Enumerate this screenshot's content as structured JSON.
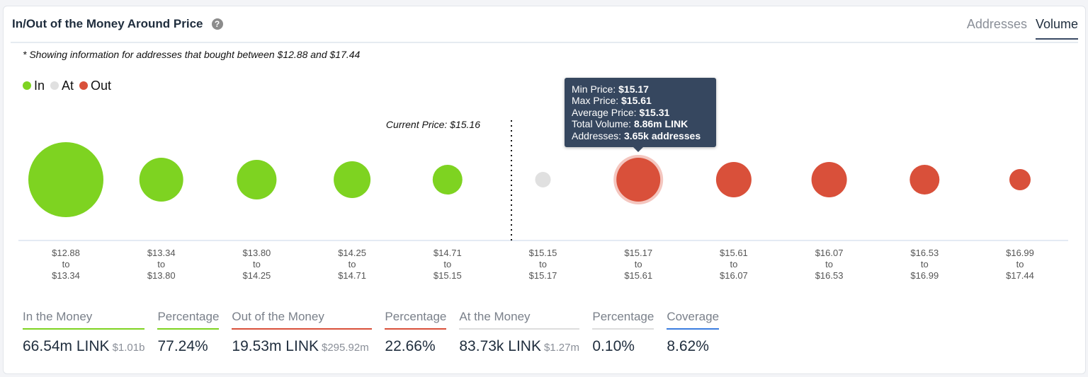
{
  "header": {
    "title": "In/Out of the Money Around Price",
    "help_icon": "question-circle-icon",
    "tabs": [
      "Addresses",
      "Volume"
    ],
    "active_tab": "Volume"
  },
  "note": "* Showing information for addresses that bought between $12.88 and $17.44",
  "legend": [
    {
      "label": "In",
      "color": "#7ed321"
    },
    {
      "label": "At",
      "color": "#e0e0e0"
    },
    {
      "label": "Out",
      "color": "#d9503a"
    }
  ],
  "chart_data": {
    "type": "bubble",
    "current_price_label": "Current Price: $15.16",
    "buckets": [
      {
        "from": "$12.88",
        "to": "$13.34",
        "status": "In"
      },
      {
        "from": "$13.34",
        "to": "$13.80",
        "status": "In"
      },
      {
        "from": "$13.80",
        "to": "$14.25",
        "status": "In"
      },
      {
        "from": "$14.25",
        "to": "$14.71",
        "status": "In"
      },
      {
        "from": "$14.71",
        "to": "$15.15",
        "status": "In"
      },
      {
        "from": "$15.15",
        "to": "$15.17",
        "status": "At"
      },
      {
        "from": "$15.17",
        "to": "$15.61",
        "status": "Out"
      },
      {
        "from": "$15.61",
        "to": "$16.07",
        "status": "Out"
      },
      {
        "from": "$16.07",
        "to": "$16.53",
        "status": "Out"
      },
      {
        "from": "$16.53",
        "to": "$16.99",
        "status": "Out"
      },
      {
        "from": "$16.99",
        "to": "$17.44",
        "status": "Out"
      }
    ],
    "to_word": "to"
  },
  "tooltip": {
    "rows": [
      {
        "label": "Min Price: ",
        "value": "$15.17"
      },
      {
        "label": "Max Price: ",
        "value": "$15.61"
      },
      {
        "label": "Average Price: ",
        "value": "$15.31"
      },
      {
        "label": "Total Volume: ",
        "value": "8.86m LINK"
      },
      {
        "label": "Addresses: ",
        "value": "3.65k addresses"
      }
    ]
  },
  "stats": [
    {
      "header": "In the Money",
      "value": "66.54m LINK",
      "sub": "$1.01b",
      "color": "#7ed321"
    },
    {
      "header": "Percentage",
      "value": "77.24%",
      "sub": "",
      "color": "#7ed321"
    },
    {
      "header": "Out of the Money",
      "value": "19.53m LINK",
      "sub": "$295.92m",
      "color": "#d9503a"
    },
    {
      "header": "Percentage",
      "value": "22.66%",
      "sub": "",
      "color": "#d9503a"
    },
    {
      "header": "At the Money",
      "value": "83.73k LINK",
      "sub": "$1.27m",
      "color": "#dddddd"
    },
    {
      "header": "Percentage",
      "value": "0.10%",
      "sub": "",
      "color": "#dddddd"
    },
    {
      "header": "Coverage",
      "value": "8.62%",
      "sub": "",
      "color": "#3b7de0"
    }
  ]
}
